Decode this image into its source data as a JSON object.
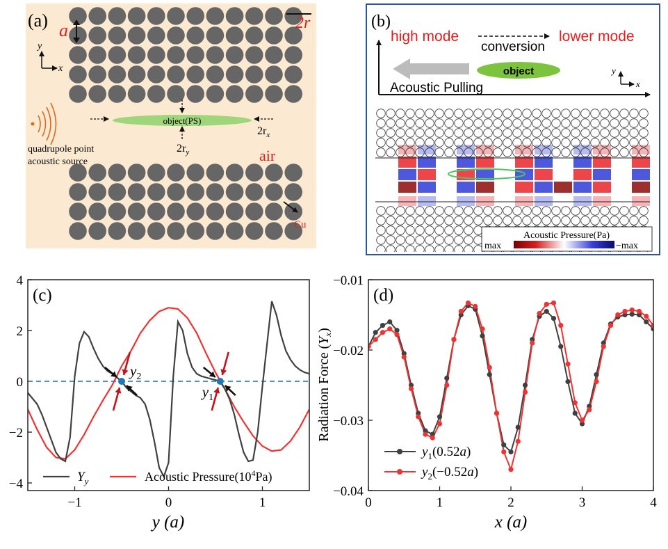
{
  "colors": {
    "panel_a_bg": "#fbe9d1",
    "rod": "#666666",
    "panel_b_border": "#2f5597",
    "red_text": "#e02020",
    "series_dark": "#404040",
    "series_red": "#ee3333",
    "zero_line": "#3b7dd8",
    "point_blue": "#1f77b4",
    "object_green": "#9fd67c",
    "source": "#d86a1a"
  },
  "panel_a": {
    "label": "(a)",
    "lattice_const": "a",
    "rod_diameter": "2r",
    "axis_y": "y",
    "axis_x": "x",
    "object_label": "object(PS)",
    "semi_axis_x_base": "2r",
    "semi_axis_x_sub": "x",
    "semi_axis_y_base": "2r",
    "semi_axis_y_sub": "y",
    "source_line1": "quadrupole point",
    "source_line2": "acoustic source",
    "air_label": "air",
    "cu_label": "Cu"
  },
  "panel_b": {
    "label": "(b)",
    "high_mode": "high mode",
    "conversion": "conversion",
    "lower_mode": "lower mode",
    "object": "object",
    "pulling": "Acoustic Pulling",
    "axis_y": "y",
    "axis_x": "x",
    "colorbar_title": "Acoustic Pressure(Pa)",
    "colorbar_min": "max",
    "colorbar_max": "−max"
  },
  "chart_data": [
    {
      "id": "c",
      "type": "line",
      "panel_label": "(c)",
      "xlabel": "y (a)",
      "xlabel_var": "y",
      "xlabel_unit": "(a)",
      "ylabel": "",
      "xlim": [
        -1.5,
        1.5
      ],
      "ylim": [
        -4.3,
        4
      ],
      "xticks": [
        -1,
        0,
        1
      ],
      "xtick_labels": [
        "−1",
        "0",
        "1"
      ],
      "yticks": [
        -4,
        -2,
        0,
        2,
        4
      ],
      "ytick_labels": [
        "−4",
        "−2",
        "0",
        "2",
        "4"
      ],
      "zero_line": 0,
      "points": [
        {
          "name": "y2",
          "label_base": "y",
          "label_sub": "2",
          "x": -0.5,
          "y": 0
        },
        {
          "name": "y1",
          "label_base": "y",
          "label_sub": "1",
          "x": 0.55,
          "y": 0
        }
      ],
      "series": [
        {
          "name": "Y_y",
          "legend_base": "Y",
          "legend_sub": "y",
          "color": "#404040",
          "x": [
            -1.5,
            -1.4,
            -1.35,
            -1.3,
            -1.25,
            -1.2,
            -1.15,
            -1.1,
            -1.05,
            -1.0,
            -0.95,
            -0.9,
            -0.85,
            -0.8,
            -0.75,
            -0.7,
            -0.65,
            -0.6,
            -0.55,
            -0.5,
            -0.45,
            -0.4,
            -0.35,
            -0.3,
            -0.25,
            -0.2,
            -0.15,
            -0.1,
            -0.05,
            0.0,
            0.05,
            0.1,
            0.15,
            0.2,
            0.25,
            0.3,
            0.35,
            0.4,
            0.45,
            0.5,
            0.55,
            0.6,
            0.65,
            0.7,
            0.75,
            0.8,
            0.85,
            0.9,
            0.95,
            1.0,
            1.05,
            1.1,
            1.15,
            1.2,
            1.25,
            1.3,
            1.35,
            1.4,
            1.45,
            1.5
          ],
          "y": [
            -0.45,
            -0.9,
            -1.3,
            -1.8,
            -2.3,
            -2.8,
            -3.05,
            -3.15,
            -2.2,
            0.2,
            1.5,
            1.95,
            1.75,
            1.3,
            0.9,
            0.6,
            0.4,
            0.3,
            0.15,
            0.0,
            -0.25,
            -0.4,
            -0.55,
            -0.65,
            -0.9,
            -1.5,
            -2.4,
            -3.4,
            -3.75,
            -3.2,
            0.2,
            2.35,
            2.0,
            1.1,
            0.55,
            0.3,
            0.2,
            0.15,
            0.1,
            0.05,
            0.0,
            -0.3,
            -0.7,
            -1.3,
            -2.1,
            -2.8,
            -3.15,
            -3.1,
            -2.0,
            -0.2,
            1.5,
            3.15,
            2.6,
            1.8,
            1.2,
            0.85,
            0.6,
            0.45,
            0.35,
            0.3
          ]
        },
        {
          "name": "Acoustic Pressure",
          "legend_text": "Acoustic Pressure(10",
          "legend_sup": "4",
          "legend_tail": "Pa)",
          "color": "#ee3333",
          "x": [
            -1.5,
            -1.4,
            -1.3,
            -1.2,
            -1.1,
            -1.0,
            -0.9,
            -0.8,
            -0.7,
            -0.6,
            -0.5,
            -0.4,
            -0.3,
            -0.2,
            -0.1,
            0.0,
            0.1,
            0.2,
            0.3,
            0.4,
            0.5,
            0.6,
            0.7,
            0.8,
            0.9,
            1.0,
            1.1,
            1.2,
            1.3,
            1.4,
            1.5
          ],
          "y": [
            -1.1,
            -1.9,
            -2.6,
            -3.0,
            -3.05,
            -2.7,
            -2.1,
            -1.4,
            -0.75,
            -0.15,
            0.6,
            1.2,
            1.9,
            2.4,
            2.75,
            2.9,
            2.85,
            2.5,
            1.9,
            1.1,
            0.35,
            -0.3,
            -1.0,
            -1.6,
            -2.15,
            -2.55,
            -2.75,
            -2.7,
            -2.35,
            -1.8,
            -1.1
          ]
        }
      ]
    },
    {
      "id": "d",
      "type": "line",
      "panel_label": "(d)",
      "xlabel": "x (a)",
      "xlabel_var": "x",
      "xlabel_unit": "(a)",
      "ylabel": "Radiation Force (Y_x)",
      "ylabel_text": "Radiation Force (",
      "ylabel_var": "Y",
      "ylabel_sub": "x",
      "ylabel_tail": ")",
      "xlim": [
        0,
        4
      ],
      "ylim": [
        -0.04,
        -0.01
      ],
      "xticks": [
        0,
        1,
        2,
        3,
        4
      ],
      "xtick_labels": [
        "0",
        "1",
        "2",
        "3",
        "4"
      ],
      "yticks": [
        -0.04,
        -0.03,
        -0.02,
        -0.01
      ],
      "ytick_labels": [
        "−0.04",
        "−0.03",
        "−0.02",
        "−0.01"
      ],
      "series": [
        {
          "name": "y1(0.52a)",
          "legend_base": "y",
          "legend_sub": "1",
          "legend_tail": "(0.52",
          "legend_a": "a",
          "legend_close": ")",
          "color": "#404040",
          "x": [
            0.0,
            0.1,
            0.2,
            0.3,
            0.4,
            0.5,
            0.6,
            0.7,
            0.8,
            0.9,
            1.0,
            1.1,
            1.2,
            1.3,
            1.4,
            1.5,
            1.6,
            1.7,
            1.8,
            1.9,
            2.0,
            2.1,
            2.2,
            2.3,
            2.4,
            2.5,
            2.6,
            2.7,
            2.8,
            2.9,
            3.0,
            3.1,
            3.2,
            3.3,
            3.4,
            3.5,
            3.6,
            3.7,
            3.8,
            3.9,
            4.0
          ],
          "y": [
            -0.0195,
            -0.0175,
            -0.0165,
            -0.016,
            -0.0172,
            -0.0205,
            -0.025,
            -0.029,
            -0.0315,
            -0.032,
            -0.0295,
            -0.024,
            -0.0185,
            -0.015,
            -0.0137,
            -0.0142,
            -0.018,
            -0.0235,
            -0.029,
            -0.0335,
            -0.0345,
            -0.031,
            -0.025,
            -0.0185,
            -0.0152,
            -0.0145,
            -0.0155,
            -0.0195,
            -0.0245,
            -0.029,
            -0.0305,
            -0.028,
            -0.0235,
            -0.019,
            -0.0163,
            -0.0153,
            -0.015,
            -0.0149,
            -0.015,
            -0.016,
            -0.017
          ]
        },
        {
          "name": "y2(-0.52a)",
          "legend_base": "y",
          "legend_sub": "2",
          "legend_tail": "(−0.52",
          "legend_a": "a",
          "legend_close": ")",
          "color": "#ee3333",
          "x": [
            0.0,
            0.1,
            0.2,
            0.3,
            0.4,
            0.5,
            0.6,
            0.7,
            0.8,
            0.9,
            1.0,
            1.1,
            1.2,
            1.3,
            1.4,
            1.5,
            1.6,
            1.7,
            1.8,
            1.9,
            2.0,
            2.1,
            2.2,
            2.3,
            2.4,
            2.5,
            2.6,
            2.7,
            2.8,
            2.9,
            3.0,
            3.1,
            3.2,
            3.3,
            3.4,
            3.5,
            3.6,
            3.7,
            3.8,
            3.9,
            4.0
          ],
          "y": [
            -0.0195,
            -0.0185,
            -0.0175,
            -0.017,
            -0.0178,
            -0.021,
            -0.0255,
            -0.0295,
            -0.032,
            -0.0325,
            -0.0305,
            -0.025,
            -0.0185,
            -0.0145,
            -0.0133,
            -0.0138,
            -0.017,
            -0.0225,
            -0.029,
            -0.0345,
            -0.037,
            -0.033,
            -0.026,
            -0.019,
            -0.0148,
            -0.0135,
            -0.0133,
            -0.0165,
            -0.022,
            -0.0275,
            -0.03,
            -0.0285,
            -0.0245,
            -0.0195,
            -0.0165,
            -0.015,
            -0.0145,
            -0.0143,
            -0.0145,
            -0.0152,
            -0.0165
          ]
        }
      ]
    }
  ]
}
